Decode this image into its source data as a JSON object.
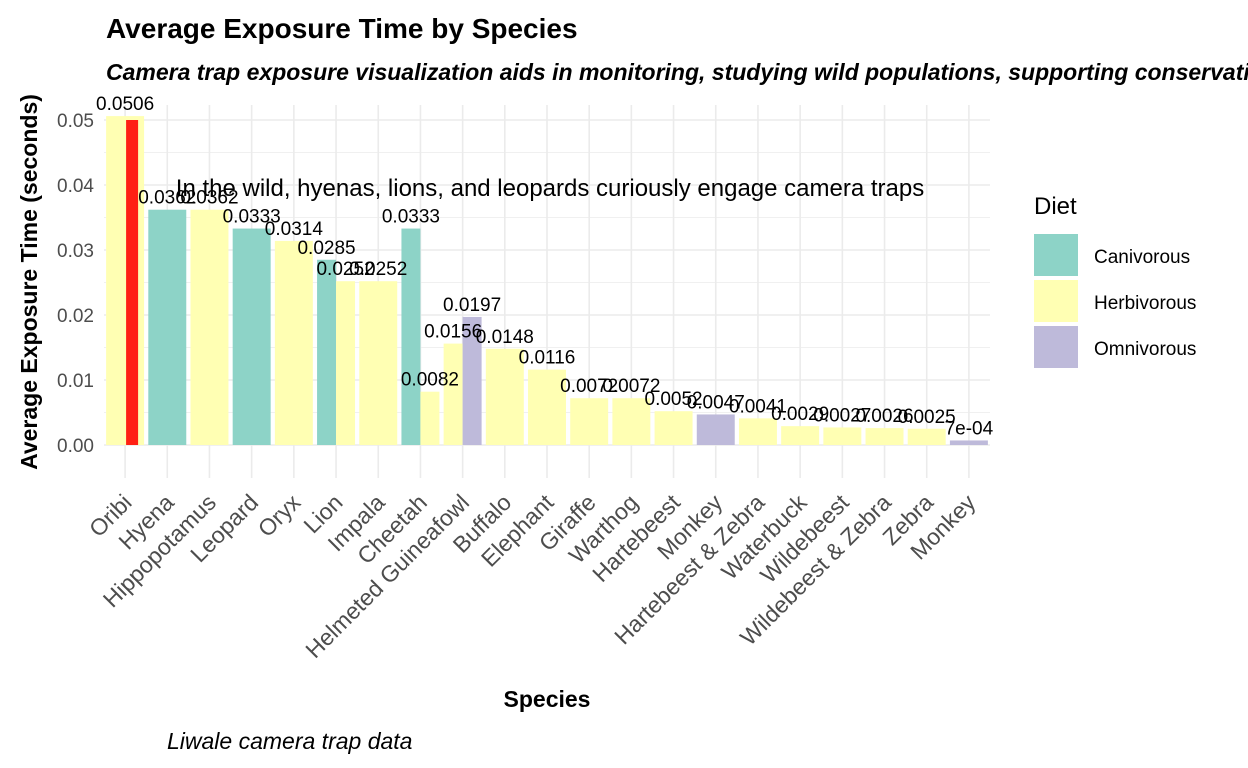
{
  "chart_data": {
    "type": "bar",
    "title": "Average Exposure Time by Species",
    "subtitle": "Camera trap exposure visualization aids in monitoring, studying wild populations, supporting conservation",
    "xlabel": "Species",
    "ylabel": "Average Exposure Time (seconds)",
    "caption": "Liwale camera trap data",
    "annotation": "In the wild, hyenas, lions, and leopards curiously engage camera traps",
    "ylim": [
      -0.005,
      0.0515
    ],
    "yticks": [
      0.0,
      0.01,
      0.02,
      0.03,
      0.04,
      0.05
    ],
    "ytick_labels": [
      "0.00",
      "0.01",
      "0.02",
      "0.03",
      "0.04",
      "0.05"
    ],
    "grid": true,
    "legend": {
      "title": "Diet",
      "position": "right",
      "entries": [
        {
          "name": "Canivorous",
          "color": "#8DD3C7"
        },
        {
          "name": "Herbivorous",
          "color": "#FFFFB3"
        },
        {
          "name": "Omnivorous",
          "color": "#BEBADA"
        }
      ]
    },
    "highlight": {
      "category": "Oribi",
      "value": 0.05,
      "color": "#FF2014"
    },
    "categories": [
      "Oribi",
      "Hyena",
      "Hippopotamus",
      "Leopard",
      "Oryx",
      "Lion",
      "Impala",
      "Cheetah",
      "Helmeted Guineafowl",
      "Buffalo",
      "Elephant",
      "Giraffe",
      "Warthog",
      "Hartebeest",
      "Monkey",
      "Hartebeest & Zebra",
      "Waterbuck",
      "Wildebeest",
      "Wildebeest & Zebra",
      "Zebra",
      "Monkey"
    ],
    "bars": [
      {
        "category": "Oribi",
        "diet": "Herbivorous",
        "value": 0.0506,
        "label": "0.0506"
      },
      {
        "category": "Hyena",
        "diet": "Canivorous",
        "value": 0.0362,
        "label": "0.0362"
      },
      {
        "category": "Hippopotamus",
        "diet": "Herbivorous",
        "value": 0.0362,
        "label": "0.0362"
      },
      {
        "category": "Leopard",
        "diet": "Canivorous",
        "value": 0.0333,
        "label": "0.0333"
      },
      {
        "category": "Oryx",
        "diet": "Herbivorous",
        "value": 0.0314,
        "label": "0.0314"
      },
      {
        "category": "Lion",
        "diet": "Canivorous",
        "value": 0.0285,
        "label": "0.0285"
      },
      {
        "category": "Lion",
        "diet": "Herbivorous",
        "value": 0.0252,
        "label": "0.0252"
      },
      {
        "category": "Impala",
        "diet": "Herbivorous",
        "value": 0.0252,
        "label": "0.0252"
      },
      {
        "category": "Cheetah",
        "diet": "Canivorous",
        "value": 0.0333,
        "label": "0.0333"
      },
      {
        "category": "Cheetah",
        "diet": "Herbivorous",
        "value": 0.0082,
        "label": "0.0082"
      },
      {
        "category": "Helmeted Guineafowl",
        "diet": "Herbivorous",
        "value": 0.0156,
        "label": "0.0156"
      },
      {
        "category": "Helmeted Guineafowl",
        "diet": "Omnivorous",
        "value": 0.0197,
        "label": "0.0197"
      },
      {
        "category": "Buffalo",
        "diet": "Herbivorous",
        "value": 0.0148,
        "label": "0.0148"
      },
      {
        "category": "Elephant",
        "diet": "Herbivorous",
        "value": 0.0116,
        "label": "0.0116"
      },
      {
        "category": "Giraffe",
        "diet": "Herbivorous",
        "value": 0.0072,
        "label": "0.0072"
      },
      {
        "category": "Warthog",
        "diet": "Herbivorous",
        "value": 0.0072,
        "label": "0.0072"
      },
      {
        "category": "Hartebeest",
        "diet": "Herbivorous",
        "value": 0.0052,
        "label": "0.0052"
      },
      {
        "category": "Monkey",
        "diet": "Omnivorous",
        "value": 0.0047,
        "label": "0.0047"
      },
      {
        "category": "Hartebeest & Zebra",
        "diet": "Herbivorous",
        "value": 0.0041,
        "label": "0.0041"
      },
      {
        "category": "Waterbuck",
        "diet": "Herbivorous",
        "value": 0.0029,
        "label": "0.0029"
      },
      {
        "category": "Wildebeest",
        "diet": "Herbivorous",
        "value": 0.0027,
        "label": "0.0027"
      },
      {
        "category": "Wildebeest & Zebra",
        "diet": "Herbivorous",
        "value": 0.0026,
        "label": "0.0026"
      },
      {
        "category": "Zebra",
        "diet": "Herbivorous",
        "value": 0.0025,
        "label": "0.0025"
      },
      {
        "category": "Monkey",
        "diet": "Omnivorous",
        "value": 0.0007,
        "label": "7e-04"
      }
    ]
  }
}
